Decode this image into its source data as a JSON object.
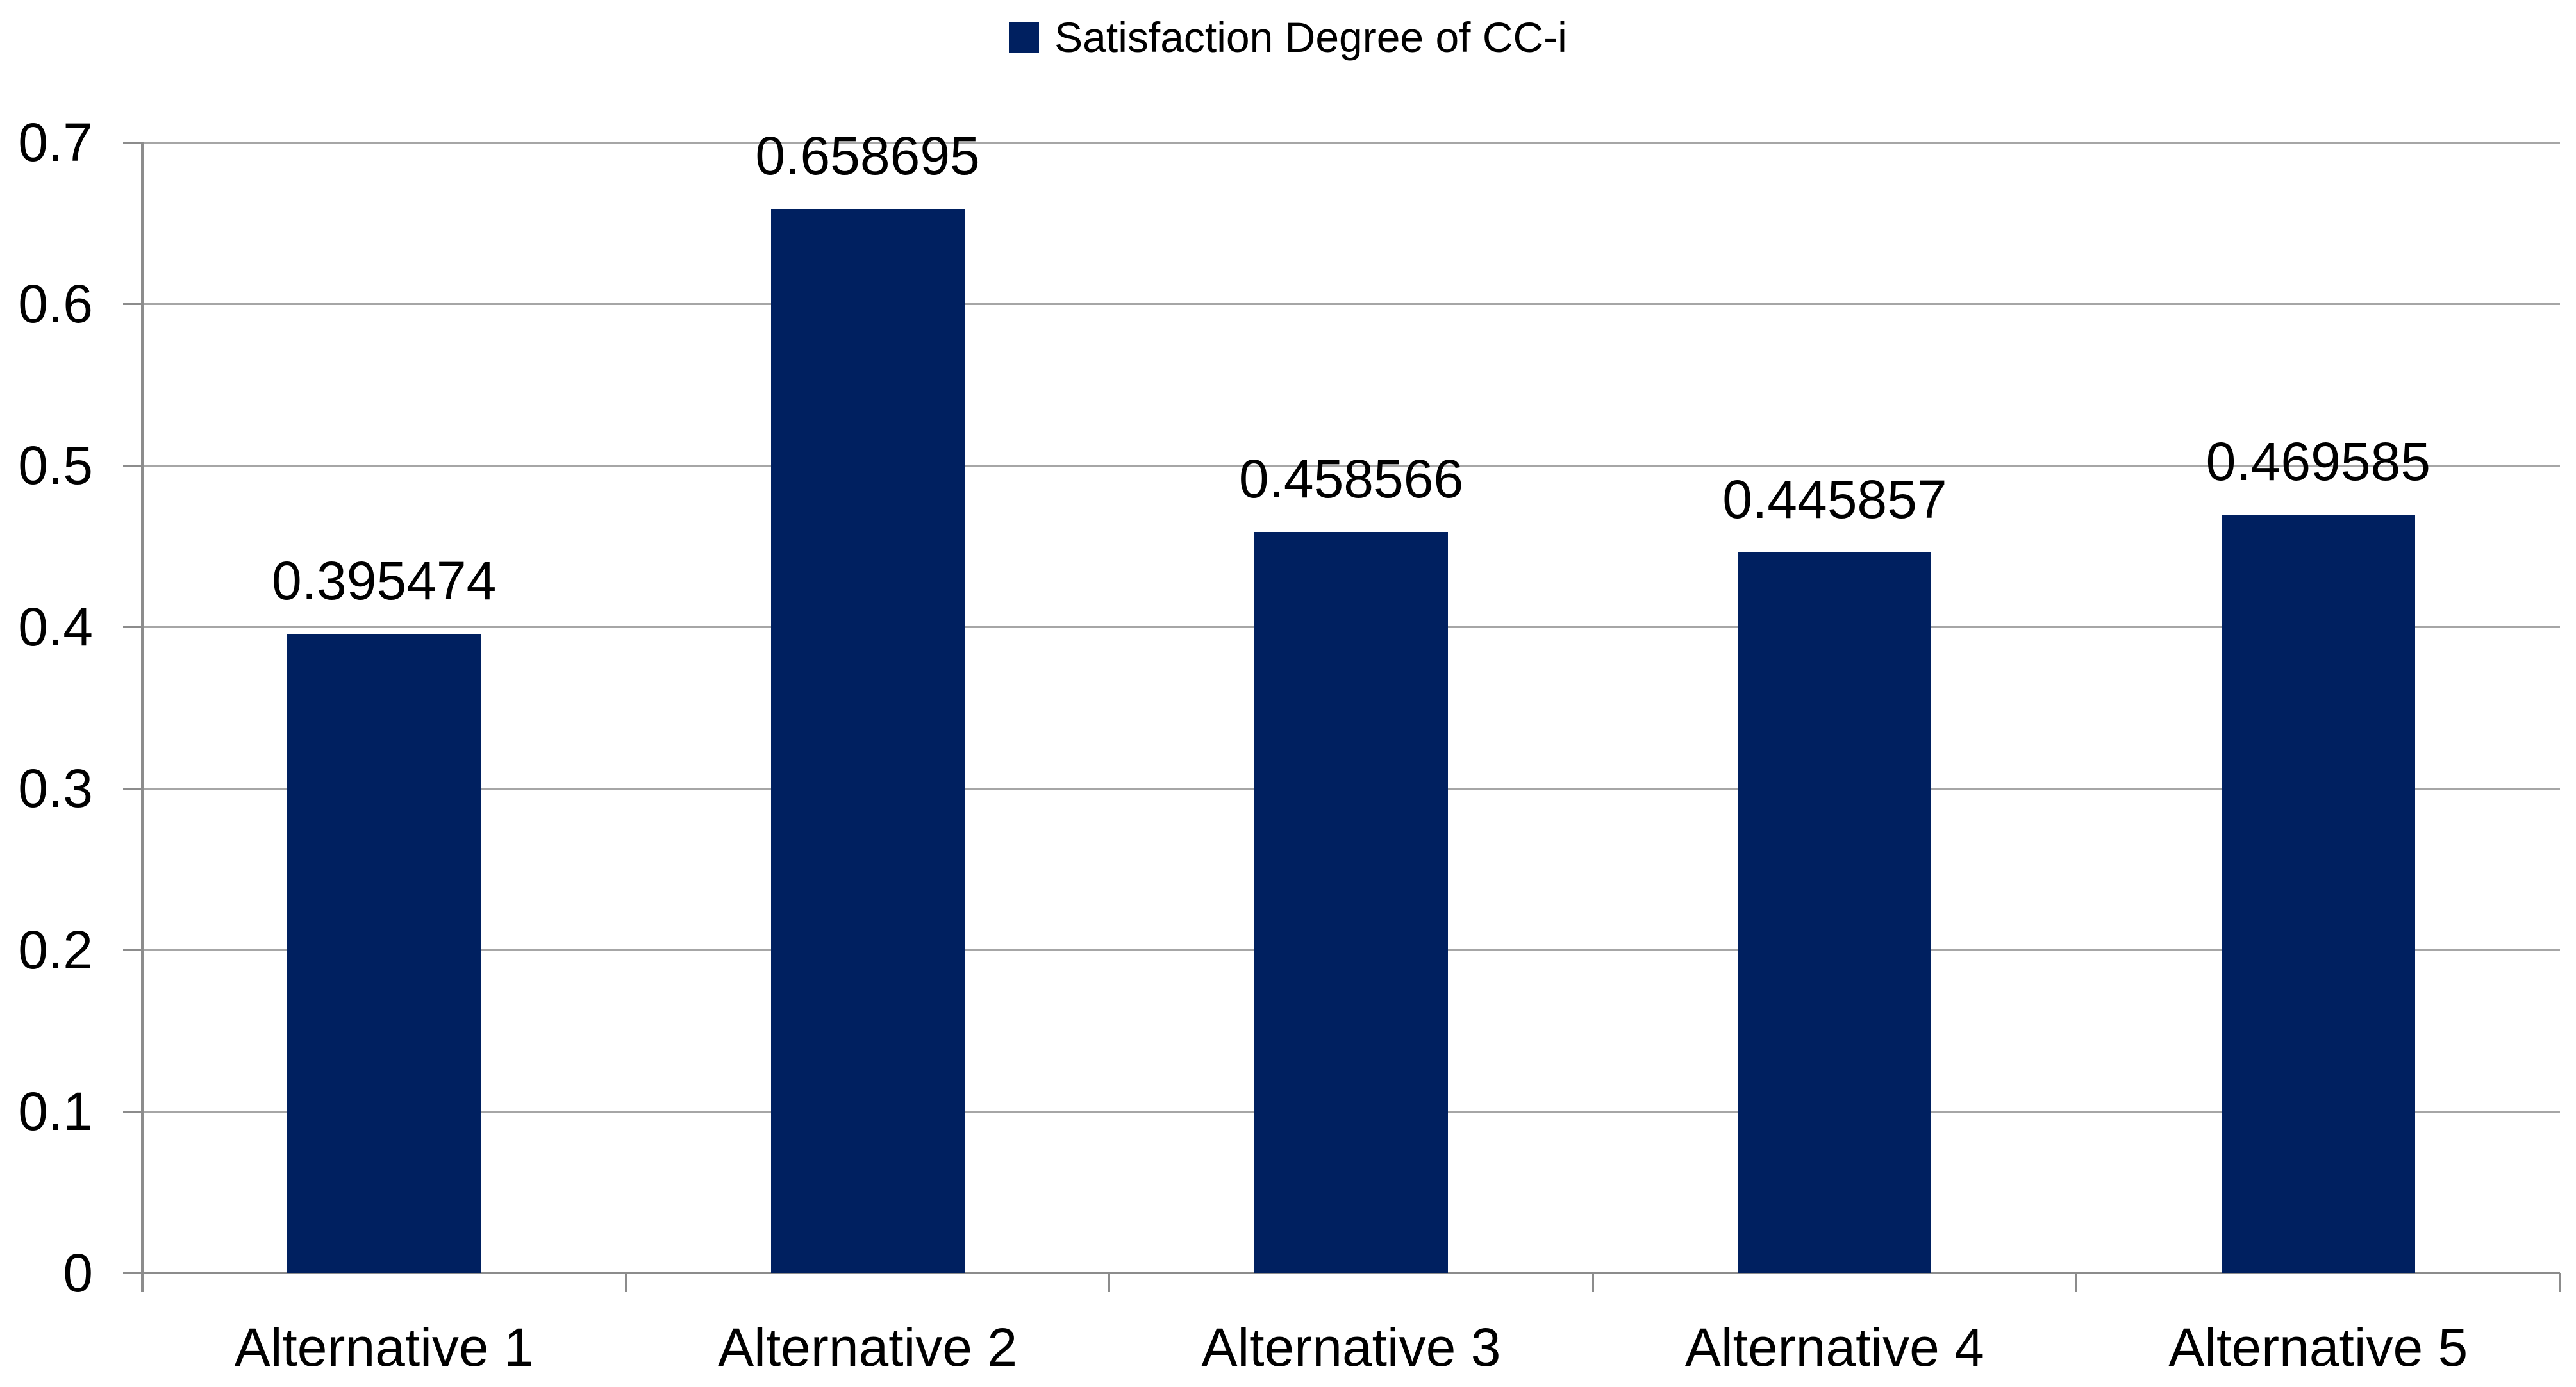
{
  "chart_data": {
    "type": "bar",
    "title": "Satisfaction Degree of CC-i",
    "legend": [
      {
        "label": "Satisfaction Degree of CC-i",
        "color": "#002060"
      }
    ],
    "legend_position": "top-center",
    "categories": [
      "Alternative 1",
      "Alternative 2",
      "Alternative 3",
      "Alternative 4",
      "Alternative 5"
    ],
    "series": [
      {
        "name": "Satisfaction Degree of CC-i",
        "values": [
          0.395474,
          0.658695,
          0.458566,
          0.445857,
          0.469585
        ],
        "color": "#002060"
      }
    ],
    "data_labels": [
      "0.395474",
      "0.658695",
      "0.458566",
      "0.445857",
      "0.469585"
    ],
    "xlabel": "",
    "ylabel": "",
    "y_axis": {
      "min": 0,
      "max": 0.7,
      "step": 0.1,
      "tick_labels": [
        "0",
        "0.1",
        "0.2",
        "0.3",
        "0.4",
        "0.5",
        "0.6",
        "0.7"
      ]
    },
    "grid": true
  },
  "colors": {
    "bar": "#002060",
    "gridline": "#A6A6A6",
    "axis": "#8C8C8C",
    "text": "#000000",
    "background": "#FFFFFF"
  }
}
